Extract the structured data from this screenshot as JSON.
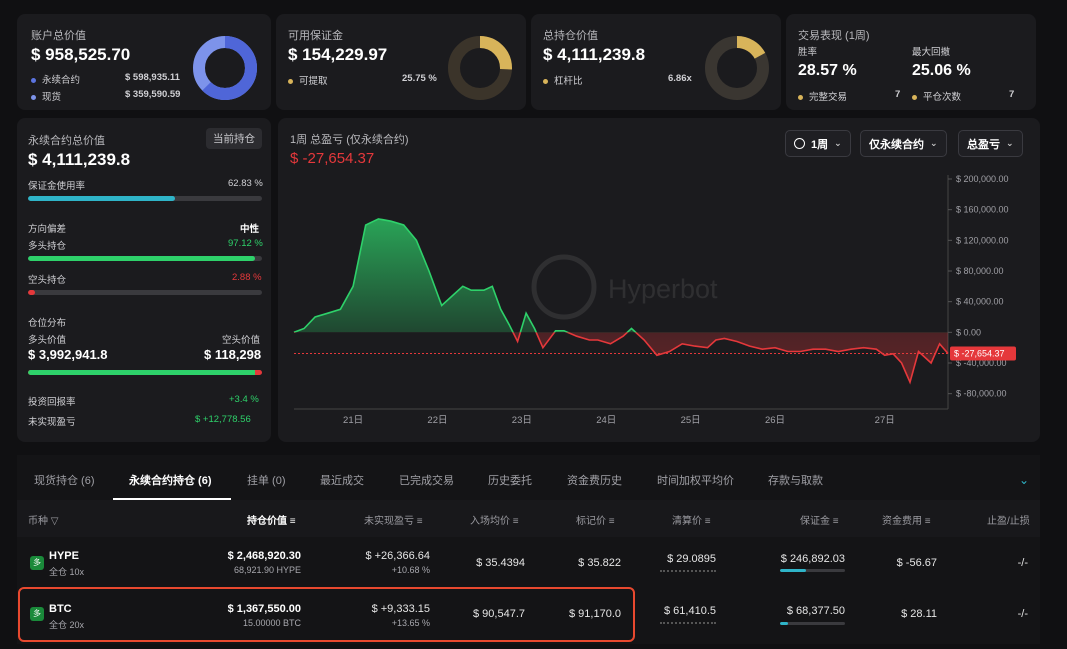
{
  "cards": {
    "account": {
      "title": "账户总价值",
      "value": "$ 958,525.70",
      "rows": [
        {
          "label": "永续合约",
          "value": "$ 598,935.11"
        },
        {
          "label": "现货",
          "value": "$ 359,590.59"
        }
      ]
    },
    "margin": {
      "title": "可用保证金",
      "value": "$ 154,229.97",
      "row": {
        "label": "可提取",
        "value": "25.75 %"
      },
      "withdrawable_fraction": 0.2575
    },
    "position": {
      "title": "总持仓价值",
      "value": "$ 4,111,239.8",
      "row": {
        "label": "杠杆比",
        "value": "6.86x"
      }
    },
    "perf": {
      "title": "交易表现 (1周)",
      "winrate_label": "胜率",
      "winrate": "28.57 %",
      "drawdown_label": "最大回撤",
      "drawdown": "25.06 %",
      "complete_label": "完整交易",
      "complete": "7",
      "close_label": "平仓次数",
      "close": "7"
    }
  },
  "perp": {
    "title": "永续合约总价值",
    "badge": "当前持仓",
    "value": "$ 4,111,239.8",
    "margin_usage_label": "保证金使用率",
    "margin_usage": "62.83 %",
    "margin_usage_fraction": 0.6283,
    "bias_label": "方向偏差",
    "bias_value": "中性",
    "long_label": "多头持仓",
    "long_pct": "97.12 %",
    "long_fraction": 0.9712,
    "short_label": "空头持仓",
    "short_pct": "2.88 %",
    "short_fraction": 0.0288,
    "dist_label": "仓位分布",
    "long_value_label": "多头价值",
    "short_value_label": "空头价值",
    "long_value": "$ 3,992,941.8",
    "short_value": "$ 118,298",
    "roi_label": "投资回报率",
    "roi": "+3.4 %",
    "upnl_label": "未实现盈亏",
    "upnl": "$ +12,778.56"
  },
  "chart_header": {
    "title": "1周 总盈亏 (仅永续合约)",
    "value": "$ -27,654.37",
    "dd1": "1周",
    "dd2": "仅永续合约",
    "dd3": "总盈亏",
    "watermark": "Hyperbot"
  },
  "chart_data": {
    "type": "line",
    "ylim": [
      -100000,
      200000
    ],
    "yticks": [
      "$ 200,000.00",
      "$ 160,000.00",
      "$ 120,000.00",
      "$ 80,000.00",
      "$ 40,000.00",
      "$ 0.00",
      "$ -40,000.00",
      "$ -80,000.00"
    ],
    "ytick_values": [
      200000,
      160000,
      120000,
      80000,
      40000,
      0,
      -40000,
      -80000
    ],
    "xticks": [
      "21日",
      "22日",
      "23日",
      "24日",
      "25日",
      "26日",
      "27日"
    ],
    "xtick_values": [
      0.7,
      1.7,
      2.7,
      3.7,
      4.7,
      5.7,
      7.0
    ],
    "current_value": -27654.37,
    "current_label": "$ -27,654.37",
    "x": [
      0.0,
      0.12,
      0.25,
      0.4,
      0.55,
      0.7,
      0.85,
      1.0,
      1.15,
      1.3,
      1.45,
      1.6,
      1.75,
      1.9,
      2.0,
      2.1,
      2.25,
      2.35,
      2.45,
      2.55,
      2.65,
      2.75,
      2.85,
      2.95,
      3.1,
      3.2,
      3.35,
      3.5,
      3.6,
      3.75,
      3.9,
      4.0,
      4.15,
      4.3,
      4.45,
      4.6,
      4.75,
      4.9,
      5.0,
      5.1,
      5.25,
      5.4,
      5.55,
      5.7,
      5.85,
      6.0,
      6.15,
      6.3,
      6.45,
      6.6,
      6.75,
      6.9,
      7.0,
      7.1,
      7.2,
      7.3,
      7.4,
      7.55,
      7.65,
      7.75
    ],
    "y": [
      0,
      5000,
      20000,
      25000,
      30000,
      60000,
      140000,
      148000,
      145000,
      140000,
      120000,
      80000,
      35000,
      50000,
      60000,
      55000,
      55000,
      60000,
      30000,
      10000,
      -12000,
      25000,
      5000,
      -20000,
      2000,
      2000,
      -5000,
      -10000,
      -10000,
      -15000,
      -5000,
      5000,
      -10000,
      -30000,
      -25000,
      -15000,
      -18000,
      -20000,
      -10000,
      -8000,
      -12000,
      -18000,
      -22000,
      -20000,
      -25000,
      -25000,
      -22000,
      -22000,
      -25000,
      -22000,
      -20000,
      -22000,
      -30000,
      -28000,
      -40000,
      -65000,
      -25000,
      -40000,
      -15000,
      -27654
    ]
  },
  "tabs": [
    "现货持仓 (6)",
    "永续合约持仓 (6)",
    "挂单 (0)",
    "最近成交",
    "已完成交易",
    "历史委托",
    "资金费历史",
    "时间加权平均价",
    "存款与取款"
  ],
  "table": {
    "headers": {
      "coin": "币种",
      "pos": "持仓价值",
      "upnl": "未实现盈亏",
      "entry": "入场均价",
      "mark": "标记价",
      "liq": "清算价",
      "margin": "保证金",
      "funding": "资金费用",
      "tpsl": "止盈/止损"
    },
    "rows": [
      {
        "coin": "HYPE",
        "mode": "全仓 10x",
        "badge": "多",
        "pos": "$ 2,468,920.30",
        "size": "68,921.90 HYPE",
        "upnl": "$ +26,366.64",
        "upnl_pct": "+10.68 %",
        "entry": "$ 35.4394",
        "mark": "$ 35.822",
        "liq": "$ 29.0895",
        "margin": "$ 246,892.03",
        "funding": "$ -56.67",
        "tpsl": "-/-"
      },
      {
        "coin": "BTC",
        "mode": "全仓 20x",
        "badge": "多",
        "pos": "$ 1,367,550.00",
        "size": "15.00000 BTC",
        "upnl": "$ +9,333.15",
        "upnl_pct": "+13.65 %",
        "entry": "$ 90,547.7",
        "mark": "$ 91,170.0",
        "liq": "$ 61,410.5",
        "margin": "$ 68,377.50",
        "funding": "$ 28.11",
        "tpsl": "-/-"
      }
    ]
  },
  "colors": {
    "green": "#2ed16a",
    "red": "#e5383b",
    "blue": "#5b74e0",
    "gold": "#d8b45a",
    "cyan": "#2fb4c8"
  }
}
